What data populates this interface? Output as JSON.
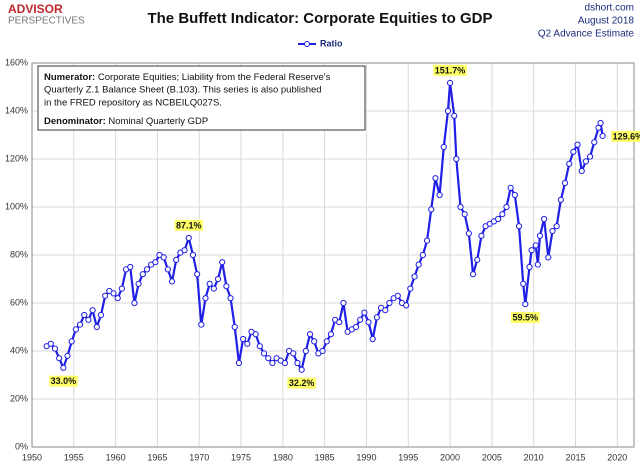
{
  "header": {
    "logo_top": "ADVISOR",
    "logo_bottom": "PERSPECTIVES",
    "source": "dshort.com",
    "date": "August 2018",
    "estimate": "Q2 Advance Estimate"
  },
  "note": {
    "numerator_label": "Numerator:",
    "numerator_lines": [
      "Corporate Equities; Liability from the Federal Reserve's",
      "Quarterly Z.1 Balance Sheet (B.103). This series is also published",
      "in the FRED repository  as NCBEILQ027S."
    ],
    "denominator_label": "Denominator:",
    "denominator_text": "Nominal Quarterly GDP"
  },
  "chart_data": {
    "type": "line",
    "title": "The Buffett Indicator: Corporate Equities to GDP",
    "x": [
      1951.75,
      1952.25,
      1952.75,
      1953.25,
      1953.75,
      1954.25,
      1954.75,
      1955.25,
      1955.75,
      1956.25,
      1956.75,
      1957.25,
      1957.75,
      1958.25,
      1958.75,
      1959.25,
      1959.75,
      1960.25,
      1960.75,
      1961.25,
      1961.75,
      1962.25,
      1962.75,
      1963.25,
      1963.75,
      1964.25,
      1964.75,
      1965.25,
      1965.75,
      1966.25,
      1966.75,
      1967.25,
      1967.75,
      1968.25,
      1968.75,
      1969.25,
      1969.75,
      1970.25,
      1970.75,
      1971.25,
      1971.75,
      1972.25,
      1972.75,
      1973.25,
      1973.75,
      1974.25,
      1974.75,
      1975.25,
      1975.75,
      1976.25,
      1976.75,
      1977.25,
      1977.75,
      1978.25,
      1978.75,
      1979.25,
      1979.75,
      1980.25,
      1980.75,
      1981.25,
      1981.75,
      1982.25,
      1982.75,
      1983.25,
      1983.75,
      1984.25,
      1984.75,
      1985.25,
      1985.75,
      1986.25,
      1986.75,
      1987.25,
      1987.75,
      1988.25,
      1988.75,
      1989.25,
      1989.75,
      1990.25,
      1990.75,
      1991.25,
      1991.75,
      1992.25,
      1992.75,
      1993.25,
      1993.75,
      1994.25,
      1994.75,
      1995.25,
      1995.75,
      1996.25,
      1996.75,
      1997.25,
      1997.75,
      1998.25,
      1998.75,
      1999.25,
      1999.75,
      2000.0,
      2000.5,
      2000.75,
      2001.25,
      2001.75,
      2002.25,
      2002.75,
      2003.25,
      2003.75,
      2004.25,
      2004.75,
      2005.25,
      2005.75,
      2006.25,
      2006.75,
      2007.25,
      2007.75,
      2008.25,
      2008.75,
      2009.0,
      2009.5,
      2009.75,
      2010.25,
      2010.5,
      2010.75,
      2011.25,
      2011.75,
      2012.25,
      2012.75,
      2013.25,
      2013.75,
      2014.25,
      2014.75,
      2015.25,
      2015.75,
      2016.25,
      2016.75,
      2017.25,
      2017.75,
      2018.0,
      2018.25
    ],
    "series": [
      {
        "name": "Ratio",
        "color": "#1f1fe6",
        "values": [
          42,
          43,
          41,
          37,
          33.0,
          38,
          44,
          49,
          51,
          55,
          53,
          57,
          50,
          55,
          63,
          65,
          64,
          62,
          66,
          74,
          75,
          60,
          68,
          72,
          74,
          76,
          77,
          80,
          79,
          74,
          69,
          78,
          81,
          82,
          87.1,
          80,
          72,
          51,
          62,
          68,
          66,
          70,
          77,
          67,
          62,
          50,
          35,
          45,
          43,
          48,
          47,
          42,
          39,
          37,
          35,
          37,
          36,
          35,
          40,
          39,
          35,
          32.2,
          40,
          47,
          44,
          39,
          40,
          44,
          47,
          53,
          52,
          60,
          48,
          49,
          50,
          53,
          56,
          52,
          45,
          54,
          58,
          57,
          60,
          62,
          63,
          60,
          59,
          66,
          71,
          76,
          80,
          86,
          99,
          112,
          105,
          125,
          140,
          151.7,
          138,
          120,
          100,
          97,
          89,
          72,
          78,
          88,
          92,
          93,
          94,
          95,
          97,
          100,
          108,
          105,
          92,
          68,
          59.5,
          75,
          82,
          84,
          76,
          88,
          95,
          79,
          90,
          92,
          103,
          110,
          118,
          123,
          126,
          115,
          119,
          121,
          127,
          133,
          135,
          129.6
        ],
        "value_labels": [
          null,
          null,
          null,
          null,
          "33.0%",
          null,
          null,
          null,
          null,
          null,
          null,
          null,
          null,
          null,
          null,
          null,
          null,
          null,
          null,
          null,
          null,
          null,
          null,
          null,
          null,
          null,
          null,
          null,
          null,
          null,
          null,
          null,
          null,
          null,
          "87.1%",
          null,
          null,
          null,
          null,
          null,
          null,
          null,
          null,
          null,
          null,
          null,
          null,
          null,
          null,
          null,
          null,
          null,
          null,
          null,
          null,
          null,
          null,
          null,
          null,
          null,
          null,
          "32.2%",
          null,
          null,
          null,
          null,
          null,
          null,
          null,
          null,
          null,
          null,
          null,
          null,
          null,
          null,
          null,
          null,
          null,
          null,
          null,
          null,
          null,
          null,
          null,
          null,
          null,
          null,
          null,
          null,
          null,
          null,
          null,
          null,
          null,
          null,
          null,
          "151.7%",
          null,
          null,
          null,
          null,
          null,
          null,
          null,
          null,
          null,
          null,
          null,
          null,
          null,
          null,
          null,
          null,
          null,
          null,
          "59.5%",
          null,
          null,
          null,
          null,
          null,
          null,
          null,
          null,
          null,
          null,
          null,
          null,
          null,
          null,
          null,
          null,
          null,
          null,
          null,
          null,
          "129.6%"
        ]
      }
    ],
    "xlim": [
      1950,
      2022
    ],
    "xticks": [
      1950,
      1955,
      1960,
      1965,
      1970,
      1975,
      1980,
      1985,
      1990,
      1995,
      2000,
      2005,
      2010,
      2015,
      2020
    ],
    "ylim": [
      0,
      160
    ],
    "yticks": [
      {
        "value": 0,
        "label": "0%"
      },
      {
        "value": 20,
        "label": "20%"
      },
      {
        "value": 40,
        "label": "40%"
      },
      {
        "value": 60,
        "label": "60%"
      },
      {
        "value": 80,
        "label": "80%"
      },
      {
        "value": 100,
        "label": "100%"
      },
      {
        "value": 120,
        "label": "120%"
      },
      {
        "value": 140,
        "label": "140%"
      },
      {
        "value": 160,
        "label": "160%"
      }
    ],
    "grid": true,
    "label_color": "#ffff66"
  }
}
